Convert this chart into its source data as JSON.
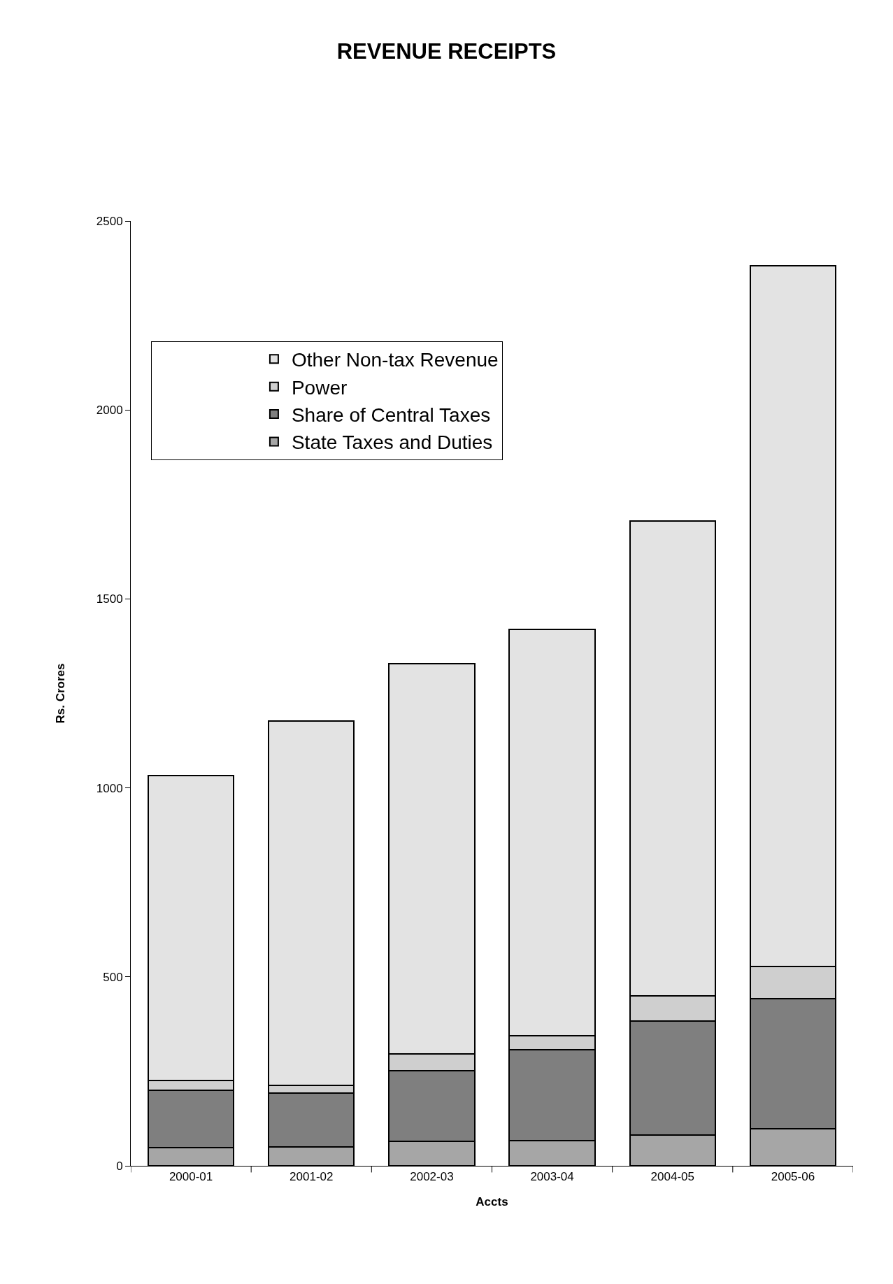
{
  "chart_data": {
    "type": "bar",
    "title": "REVENUE RECEIPTS",
    "xlabel": "Accts",
    "ylabel": "Rs. Crores",
    "stacked": true,
    "categories": [
      "2000-01",
      "2001-02",
      "2002-03",
      "2003-04",
      "2004-05",
      "2005-06"
    ],
    "series": [
      {
        "name": "State Taxes and Duties",
        "color": "#a6a6a6",
        "values": [
          48,
          50,
          64,
          67,
          81,
          99
        ]
      },
      {
        "name": "Share of Central Taxes",
        "color": "#7f7f7f",
        "values": [
          152,
          142,
          188,
          241,
          302,
          343
        ]
      },
      {
        "name": "Power",
        "color": "#cfcfcf",
        "values": [
          26,
          20,
          45,
          37,
          66,
          86
        ]
      },
      {
        "name": "Other Non-tax Revenue",
        "color": "#e3e3e3",
        "values": [
          807,
          964,
          1031,
          1074,
          1258,
          1853
        ]
      }
    ],
    "ylim": [
      0,
      2500
    ],
    "yticks": [
      0,
      500,
      1000,
      1500,
      2000,
      2500
    ],
    "legend": "top left"
  }
}
